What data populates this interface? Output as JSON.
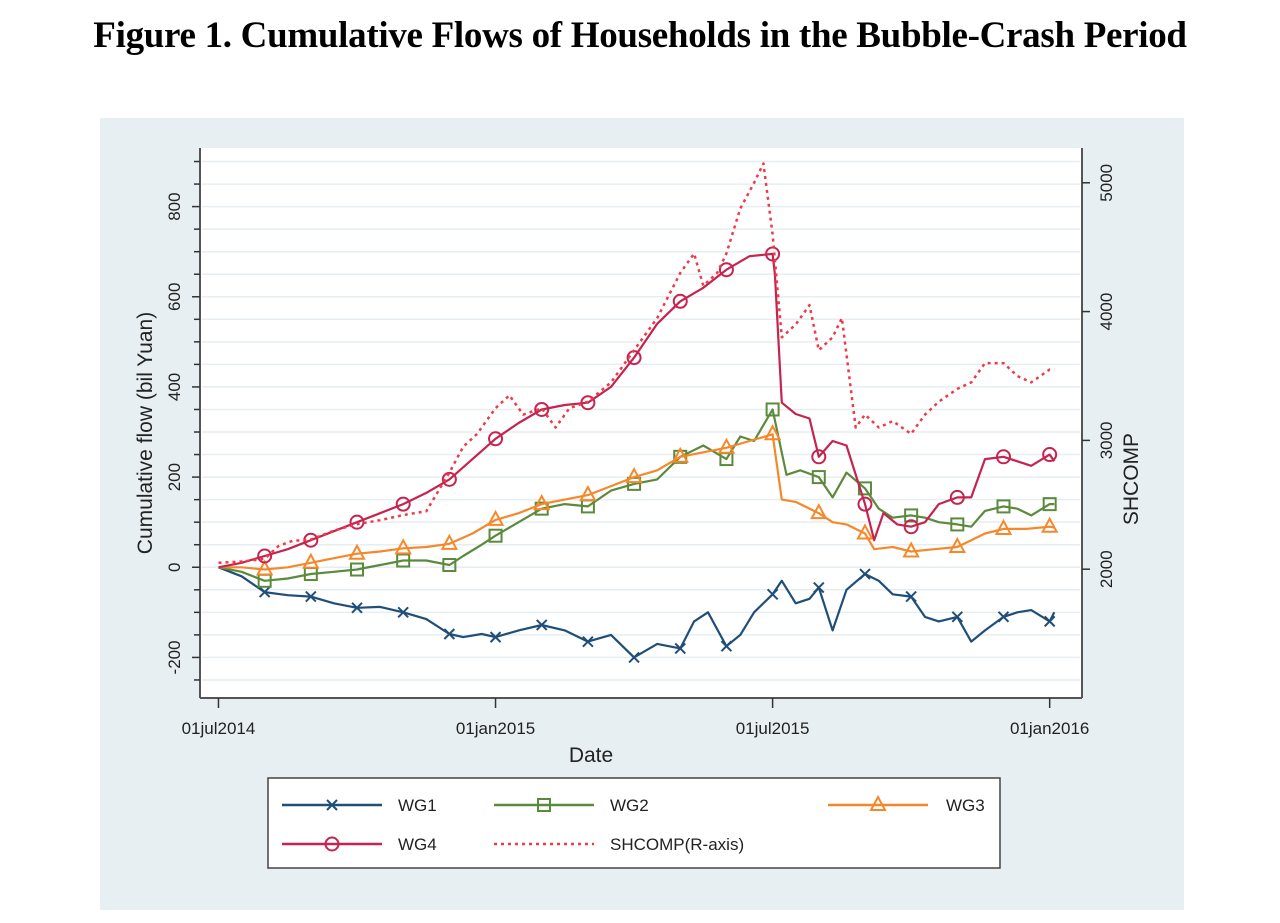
{
  "figure_title": "Figure 1. Cumulative Flows of Households in the Bubble-Crash Period",
  "chart_data": {
    "type": "line",
    "title": "Figure 1. Cumulative Flows of Households in the Bubble-Crash Period",
    "xlabel": "Date",
    "ylabel": "Cumulative flow (bil Yuan)",
    "y2label": "SHCOMP",
    "x_ticks": [
      "01jul2014",
      "01jan2015",
      "01jul2015",
      "01jan2016"
    ],
    "x_tick_months": [
      0,
      6,
      12,
      18
    ],
    "xlim_months": [
      -0.4,
      18.7
    ],
    "y_ticks": [
      -200,
      0,
      200,
      400,
      600,
      800
    ],
    "y_tick_labels": [
      "-200",
      "0",
      "200",
      "400",
      "600",
      "800"
    ],
    "ylim": [
      -290,
      930
    ],
    "y2_ticks": [
      2000,
      3000,
      4000,
      5000
    ],
    "y2_tick_labels": [
      "2000",
      "3000",
      "4000",
      "5000"
    ],
    "y2lim": [
      1000,
      5270
    ],
    "grid": true,
    "legend_position": "bottom",
    "x_unit": "months since 01jul2014",
    "series": [
      {
        "name": "WG1",
        "axis": "left",
        "color": "#1f4e79",
        "marker": "x",
        "style": "solid",
        "x": [
          0,
          0.5,
          1,
          1.5,
          2,
          2.5,
          3,
          3.5,
          4,
          4.5,
          5,
          5.3,
          5.7,
          6,
          6.5,
          7,
          7.5,
          8,
          8.5,
          9,
          9.5,
          10,
          10.3,
          10.6,
          11,
          11.3,
          11.6,
          12,
          12.2,
          12.5,
          12.8,
          13,
          13.3,
          13.6,
          14,
          14.3,
          14.6,
          15,
          15.3,
          15.6,
          16,
          16.3,
          16.6,
          17,
          17.3,
          17.6,
          18,
          18.1
        ],
        "y": [
          0,
          -20,
          -55,
          -62,
          -65,
          -80,
          -90,
          -88,
          -100,
          -115,
          -148,
          -155,
          -148,
          -155,
          -140,
          -128,
          -140,
          -165,
          -150,
          -200,
          -170,
          -180,
          -120,
          -100,
          -175,
          -150,
          -100,
          -60,
          -30,
          -80,
          -70,
          -45,
          -140,
          -50,
          -15,
          -30,
          -60,
          -65,
          -110,
          -120,
          -110,
          -165,
          -140,
          -110,
          -100,
          -95,
          -120,
          -100
        ]
      },
      {
        "name": "WG2",
        "axis": "left",
        "color": "#5b8a3c",
        "marker": "square",
        "style": "solid",
        "x": [
          0,
          0.5,
          1,
          1.5,
          2,
          2.5,
          3,
          3.5,
          4,
          4.5,
          5,
          5.3,
          5.7,
          6,
          6.5,
          7,
          7.5,
          8,
          8.5,
          9,
          9.5,
          10,
          10.5,
          11,
          11.3,
          11.6,
          12,
          12.3,
          12.6,
          13,
          13.3,
          13.6,
          14,
          14.3,
          14.6,
          15,
          15.3,
          15.6,
          16,
          16.3,
          16.6,
          17,
          17.3,
          17.6,
          18,
          18.1
        ],
        "y": [
          0,
          -10,
          -30,
          -25,
          -15,
          -10,
          -5,
          5,
          15,
          15,
          5,
          25,
          50,
          70,
          100,
          130,
          140,
          135,
          170,
          185,
          195,
          245,
          270,
          240,
          290,
          280,
          350,
          205,
          215,
          200,
          155,
          210,
          175,
          130,
          110,
          115,
          110,
          100,
          95,
          90,
          125,
          135,
          130,
          115,
          140,
          140
        ]
      },
      {
        "name": "WG3",
        "axis": "left",
        "color": "#f5882a",
        "marker": "triangle",
        "style": "solid",
        "x": [
          0,
          0.5,
          1,
          1.5,
          2,
          2.5,
          3,
          3.5,
          4,
          4.5,
          5,
          5.5,
          6,
          6.5,
          7,
          7.5,
          8,
          8.5,
          9,
          9.5,
          10,
          10.5,
          11,
          11.5,
          12,
          12.2,
          12.5,
          13,
          13.3,
          13.6,
          14,
          14.2,
          14.6,
          15,
          15.5,
          16,
          16.3,
          16.6,
          17,
          17.5,
          18,
          18.1
        ],
        "y": [
          0,
          0,
          -5,
          0,
          10,
          20,
          30,
          35,
          42,
          45,
          52,
          75,
          105,
          120,
          140,
          150,
          160,
          180,
          200,
          215,
          245,
          255,
          265,
          280,
          295,
          150,
          145,
          120,
          100,
          95,
          75,
          40,
          45,
          35,
          40,
          45,
          60,
          75,
          85,
          85,
          90,
          88
        ]
      },
      {
        "name": "WG4",
        "axis": "left",
        "color": "#c4244f",
        "marker": "circle",
        "style": "solid",
        "x": [
          0,
          0.5,
          1,
          1.5,
          2,
          2.5,
          3,
          3.5,
          4,
          4.5,
          5,
          5.5,
          6,
          6.5,
          7,
          7.5,
          8,
          8.5,
          9,
          9.5,
          10,
          10.5,
          11,
          11.5,
          12,
          12.05,
          12.2,
          12.5,
          12.8,
          13,
          13.3,
          13.6,
          14,
          14.2,
          14.4,
          14.7,
          15,
          15.3,
          15.6,
          16,
          16.3,
          16.6,
          17,
          17.3,
          17.6,
          18,
          18.1
        ],
        "y": [
          0,
          10,
          25,
          40,
          60,
          80,
          100,
          120,
          140,
          165,
          195,
          240,
          285,
          320,
          350,
          360,
          365,
          400,
          465,
          540,
          590,
          620,
          660,
          690,
          695,
          650,
          365,
          340,
          330,
          245,
          280,
          270,
          140,
          60,
          120,
          95,
          90,
          100,
          140,
          155,
          155,
          240,
          245,
          235,
          225,
          250,
          235
        ]
      },
      {
        "name": "SHCOMP(R-axis)",
        "axis": "right",
        "color": "#ee3b48",
        "marker": "none",
        "style": "dotted",
        "x": [
          0,
          0.5,
          1,
          1.3,
          1.6,
          2,
          2.5,
          3,
          3.5,
          4,
          4.5,
          5,
          5.3,
          5.6,
          6,
          6.3,
          6.6,
          7,
          7.3,
          7.6,
          8,
          8.5,
          9,
          9.5,
          10,
          10.3,
          10.5,
          10.8,
          11,
          11.3,
          11.6,
          11.8,
          12,
          12.2,
          12.5,
          12.8,
          13,
          13.3,
          13.5,
          13.8,
          14,
          14.3,
          14.6,
          15,
          15.3,
          15.6,
          16,
          16.3,
          16.6,
          17,
          17.3,
          17.6,
          18,
          18.1
        ],
        "y": [
          2050,
          2060,
          2080,
          2180,
          2220,
          2230,
          2300,
          2350,
          2380,
          2420,
          2450,
          2750,
          2950,
          3050,
          3250,
          3350,
          3200,
          3250,
          3100,
          3250,
          3300,
          3450,
          3700,
          3950,
          4300,
          4450,
          4200,
          4300,
          4450,
          4800,
          5000,
          5150,
          4600,
          3800,
          3900,
          4050,
          3700,
          3800,
          3950,
          3100,
          3200,
          3100,
          3150,
          3050,
          3200,
          3300,
          3400,
          3450,
          3600,
          3600,
          3500,
          3450,
          3550,
          3550
        ]
      }
    ],
    "legend": [
      {
        "label": "WG1",
        "series": 0
      },
      {
        "label": "WG2",
        "series": 1
      },
      {
        "label": "WG3",
        "series": 2
      },
      {
        "label": "WG4",
        "series": 3
      },
      {
        "label": "SHCOMP(R-axis)",
        "series": 4
      }
    ]
  }
}
